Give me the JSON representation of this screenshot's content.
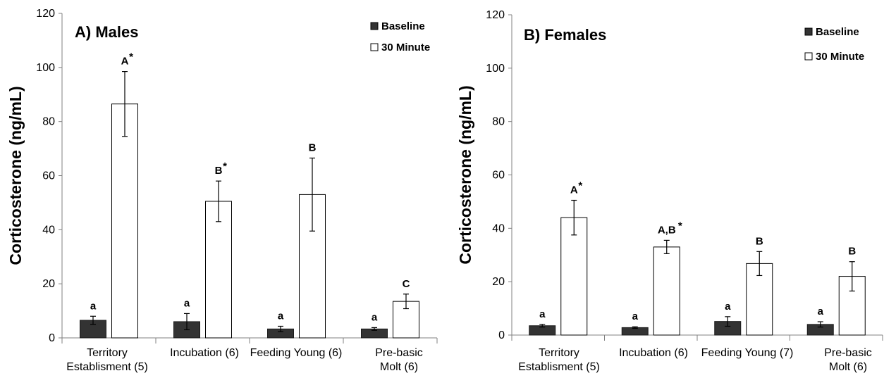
{
  "colors": {
    "baseline": "#333333",
    "thirty_minute": "#ffffff",
    "axis": "#808080",
    "stroke": "#000000"
  },
  "chart_data": [
    {
      "type": "bar",
      "title": "A) Males",
      "ylabel": "Corticosterone (ng/mL)",
      "ylim": [
        0,
        120
      ],
      "yticks": [
        "0",
        "20",
        "40",
        "60",
        "80",
        "100",
        "120"
      ],
      "categories": [
        [
          "Territory",
          "Establisment (5)"
        ],
        [
          "Incubation (6)"
        ],
        [
          "Feeding Young (6)"
        ],
        [
          "Pre-basic",
          "Molt (6)"
        ]
      ],
      "legend": [
        "Baseline",
        "30 Minute"
      ],
      "legend_position": "top-right",
      "series": [
        {
          "name": "Baseline",
          "values": [
            6.5,
            6.0,
            3.3,
            3.3
          ],
          "errors": [
            1.5,
            3.0,
            1.0,
            0.5
          ],
          "labels": [
            "a",
            "a",
            "a",
            "a"
          ],
          "stars": [
            false,
            false,
            false,
            false
          ]
        },
        {
          "name": "30 Minute",
          "values": [
            86.5,
            50.5,
            53.0,
            13.5
          ],
          "errors": [
            12.0,
            7.5,
            13.5,
            2.7
          ],
          "labels": [
            "A",
            "B",
            "B",
            "C"
          ],
          "stars": [
            true,
            true,
            false,
            false
          ]
        }
      ]
    },
    {
      "type": "bar",
      "title": "B) Females",
      "ylabel": "Corticosterone (ng/mL)",
      "ylim": [
        0,
        120
      ],
      "yticks": [
        "0",
        "20",
        "40",
        "60",
        "80",
        "100",
        "120"
      ],
      "categories": [
        [
          "Territory",
          "Establisment (5)"
        ],
        [
          "Incubation (6)"
        ],
        [
          "Feeding Young (7)"
        ],
        [
          "Pre-basic",
          "Molt (6)"
        ]
      ],
      "legend": [
        "Baseline",
        "30 Minute"
      ],
      "legend_position": "top-right",
      "series": [
        {
          "name": "Baseline",
          "values": [
            3.5,
            2.8,
            5.1,
            4.0
          ],
          "errors": [
            0.5,
            0.3,
            1.8,
            1.0
          ],
          "labels": [
            "a",
            "a",
            "a",
            "a"
          ],
          "stars": [
            false,
            false,
            false,
            false
          ]
        },
        {
          "name": "30 Minute",
          "values": [
            44.0,
            33.0,
            26.8,
            22.0
          ],
          "errors": [
            6.5,
            2.5,
            4.5,
            5.5
          ],
          "labels": [
            "A",
            "A,B",
            "B",
            "B"
          ],
          "stars": [
            true,
            true,
            false,
            false
          ]
        }
      ]
    }
  ]
}
